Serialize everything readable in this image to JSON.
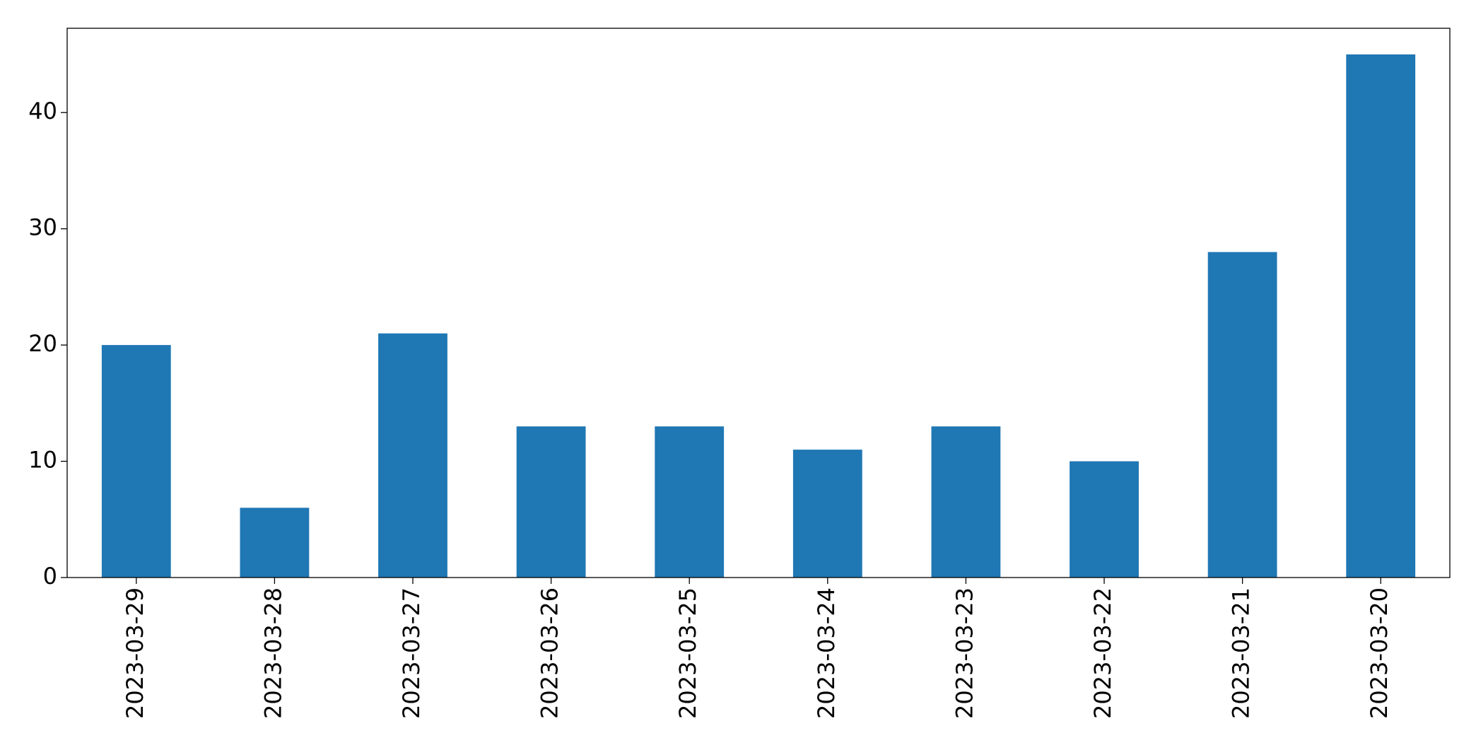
{
  "chart_data": {
    "type": "bar",
    "categories": [
      "2023-03-29",
      "2023-03-28",
      "2023-03-27",
      "2023-03-26",
      "2023-03-25",
      "2023-03-24",
      "2023-03-23",
      "2023-03-22",
      "2023-03-21",
      "2023-03-20"
    ],
    "values": [
      20,
      6,
      21,
      13,
      13,
      11,
      13,
      10,
      28,
      45
    ],
    "color": "#1f77b4",
    "ylim": [
      0,
      47.25
    ],
    "yticks": [
      0,
      10,
      20,
      30,
      40
    ],
    "grid": false
  }
}
